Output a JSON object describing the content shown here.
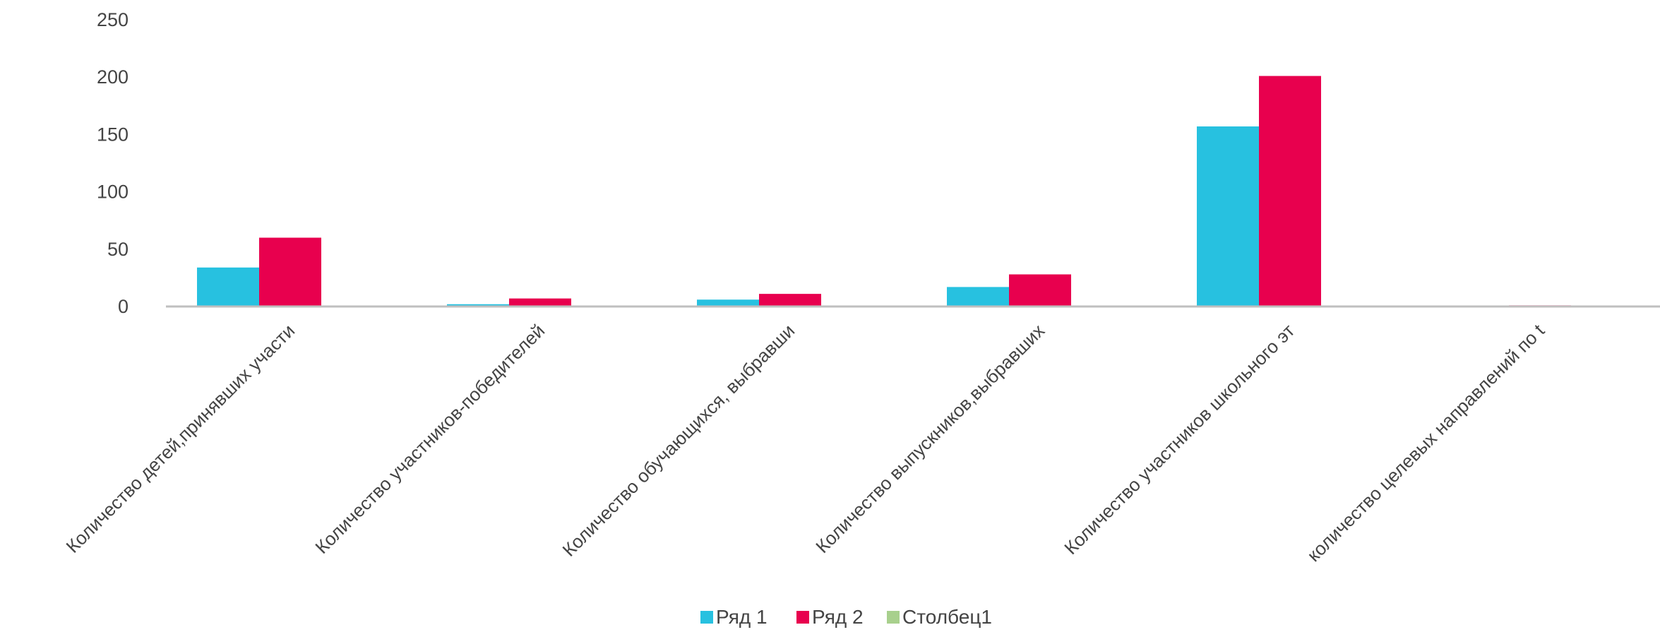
{
  "chart_data": {
    "type": "bar",
    "categories": [
      "Количество детей,принявших участи",
      "Количество участников-победителей",
      "Количество обучающихся, выбравши",
      "Количество выпускников,выбравших",
      "Количество участников школьного эт",
      "количество целевых направлений по t"
    ],
    "series": [
      {
        "name": "Ряд 1",
        "color": "#27c1e0",
        "values": [
          34,
          2,
          6,
          17,
          157,
          0
        ]
      },
      {
        "name": "Ряд 2",
        "color": "#e8004e",
        "values": [
          60,
          7,
          11,
          28,
          201,
          1
        ]
      },
      {
        "name": "Столбец1",
        "color": "#a8d08d",
        "values": [
          0,
          0,
          0,
          0,
          0,
          0
        ]
      }
    ],
    "yticks": [
      "0",
      "50",
      "100",
      "150",
      "200",
      "250"
    ],
    "ylim": [
      0,
      250
    ],
    "grid": false,
    "legend_position": "bottom"
  }
}
